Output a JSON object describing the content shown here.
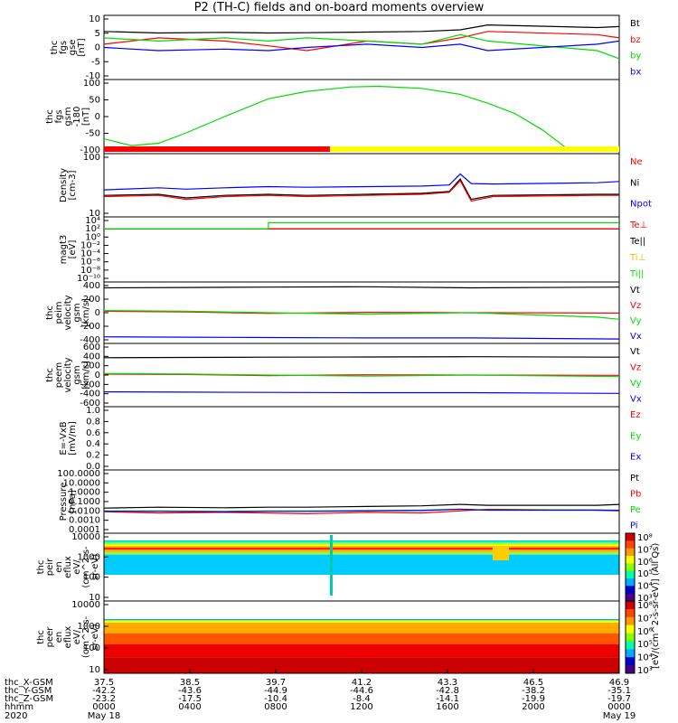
{
  "title": "P2 (TH-C) fields and on-board moments overview",
  "colors": {
    "black": "#000000",
    "red": "#ff0000",
    "green": "#00dd00",
    "blue": "#0000ff",
    "yellow": "#ffff00"
  },
  "chart_data": [
    {
      "type": "line",
      "ylabel": [
        "thc",
        "fgs",
        "gse",
        "[nT]"
      ],
      "yticks": [
        10,
        5,
        0,
        -5,
        -10
      ],
      "ylim": [
        -10,
        10
      ],
      "legend": [
        {
          "label": "Bt",
          "color": "black"
        },
        {
          "label": "bz",
          "color": "red"
        },
        {
          "label": "by",
          "color": "green"
        },
        {
          "label": "bx",
          "color": "blue"
        }
      ],
      "series": [
        {
          "name": "Bt",
          "color": "black",
          "x": [
            37.5,
            38.5,
            39.7,
            40.5,
            41.2,
            42.3,
            43.3,
            44.0,
            44.5,
            46.5,
            46.9
          ],
          "y": [
            5,
            4.5,
            4.7,
            4.5,
            4.6,
            4.8,
            5,
            5.5,
            7,
            6.2,
            6.5
          ]
        },
        {
          "name": "bz",
          "color": "red",
          "x": [
            37.5,
            38.5,
            39.7,
            40.5,
            41.2,
            42.3,
            43.3,
            44.0,
            44.5,
            46.5,
            46.9
          ],
          "y": [
            1,
            3,
            2,
            0.5,
            -1,
            2,
            1,
            3,
            5,
            4,
            3
          ]
        },
        {
          "name": "by",
          "color": "green",
          "x": [
            37.5,
            38.5,
            39.7,
            40.5,
            41.2,
            42.3,
            43.3,
            44.0,
            44.5,
            46.5,
            46.9
          ],
          "y": [
            3,
            2,
            3,
            2,
            3,
            2,
            1,
            4,
            2,
            -1,
            -3.5
          ]
        },
        {
          "name": "bx",
          "color": "blue",
          "x": [
            37.5,
            38.5,
            39.7,
            40.5,
            41.2,
            42.3,
            43.3,
            44.0,
            44.5,
            46.5,
            46.9
          ],
          "y": [
            0,
            -1,
            -0.5,
            -1,
            0,
            1,
            0,
            1,
            -1,
            1,
            2
          ]
        }
      ]
    },
    {
      "type": "line",
      "ylabel": [
        "thc",
        "fgs",
        "gsm",
        "-180",
        "[nT]"
      ],
      "yticks": [
        100,
        50,
        0,
        -50,
        -100
      ],
      "ylim": [
        -130,
        120
      ],
      "legend": [],
      "series": [
        {
          "name": "",
          "color": "green",
          "x": [
            37.5,
            38.0,
            38.5,
            39.0,
            39.7,
            40.5,
            41.2,
            42.0,
            42.5,
            43.3,
            44.0,
            44.5,
            45.0,
            45.5,
            46.0
          ],
          "y": [
            -80,
            -103,
            -95,
            -60,
            -5,
            55,
            80,
            95,
            97,
            90,
            70,
            40,
            5,
            -50,
            -120
          ]
        }
      ]
    },
    {
      "type": "line",
      "ylabel": [
        "Density",
        "[cm-3]"
      ],
      "yticks_log": [
        100,
        10
      ],
      "ylim": [
        2,
        300
      ],
      "log": true,
      "legend": [
        {
          "label": "Ne",
          "color": "red"
        },
        {
          "label": "Ni",
          "color": "black"
        },
        {
          "label": "Npot",
          "color": "blue"
        }
      ],
      "series": [
        {
          "name": "Ni",
          "color": "black",
          "x": [
            37.5,
            38.5,
            39.0,
            39.7,
            40.5,
            41.2,
            42.3,
            43.3,
            43.8,
            44.0,
            44.2,
            44.6,
            46.5,
            46.9
          ],
          "y": [
            11,
            12,
            9,
            11,
            12,
            11,
            12,
            13,
            15,
            40,
            8,
            11,
            12,
            12
          ]
        },
        {
          "name": "Ne",
          "color": "red",
          "x": [
            37.5,
            38.5,
            39.0,
            39.7,
            40.5,
            41.2,
            42.3,
            43.3,
            43.8,
            44.0,
            44.2,
            44.6,
            46.5,
            46.9
          ],
          "y": [
            10,
            11,
            8,
            10,
            11,
            10,
            11,
            12,
            14,
            35,
            7,
            10,
            11,
            11
          ]
        },
        {
          "name": "Npot",
          "color": "blue",
          "x": [
            37.5,
            38.5,
            39.0,
            39.7,
            40.5,
            41.2,
            42.3,
            43.3,
            43.8,
            44.0,
            44.2,
            44.6,
            46.5,
            46.9
          ],
          "y": [
            17,
            20,
            18,
            20,
            22,
            21,
            22,
            23,
            25,
            60,
            28,
            27,
            30,
            33
          ]
        }
      ]
    },
    {
      "type": "line",
      "ylabel": [
        "magt3",
        "[eV]"
      ],
      "yticks_log": [
        "10⁴",
        "10²",
        "10⁰",
        "10⁻²",
        "10⁻⁴",
        "10⁻⁶",
        "10⁻⁸",
        "10⁻¹⁰"
      ],
      "legend": [
        {
          "label": "Te⊥",
          "color": "red"
        },
        {
          "label": "Te||",
          "color": "black"
        },
        {
          "label": "Ti⊥",
          "color": "yellow"
        },
        {
          "label": "Ti||",
          "color": "green"
        }
      ],
      "series": [
        {
          "name": "Te||",
          "color": "black",
          "x": [
            37.5,
            40.5,
            46.9
          ],
          "y": [
            100,
            100,
            100
          ]
        },
        {
          "name": "Te⊥",
          "color": "red",
          "x": [
            37.5,
            40.5,
            46.9
          ],
          "y": [
            100,
            100,
            100
          ]
        },
        {
          "name": "Ti||",
          "color": "green",
          "x": [
            37.5,
            40.5,
            40.5,
            46.9
          ],
          "y": [
            100,
            100,
            3000,
            3000
          ]
        }
      ]
    },
    {
      "type": "line",
      "ylabel": [
        "thc",
        "peim",
        "velocity",
        "gsm",
        "[km/s]"
      ],
      "yticks": [
        400,
        200,
        0,
        -200,
        -400
      ],
      "ylim": [
        -420,
        420
      ],
      "legend": [
        {
          "label": "Vt",
          "color": "black"
        },
        {
          "label": "Vz",
          "color": "red"
        },
        {
          "label": "Vy",
          "color": "green"
        },
        {
          "label": "Vx",
          "color": "blue"
        }
      ],
      "series": [
        {
          "name": "Vt",
          "color": "black",
          "x": [
            37.5,
            39.0,
            40.5,
            42.3,
            44.2,
            46.9
          ],
          "y": [
            340,
            345,
            350,
            355,
            340,
            350
          ]
        },
        {
          "name": "Vz",
          "color": "red",
          "x": [
            37.5,
            39.0,
            40.5,
            42.3,
            44.2,
            46.9
          ],
          "y": [
            20,
            10,
            -10,
            5,
            0,
            -5
          ]
        },
        {
          "name": "Vy",
          "color": "green",
          "x": [
            37.5,
            39.0,
            40.5,
            42.3,
            44.2,
            46.5,
            46.9
          ],
          "y": [
            30,
            20,
            0,
            -20,
            0,
            -60,
            -90
          ]
        },
        {
          "name": "Vx",
          "color": "blue",
          "x": [
            37.5,
            39.0,
            40.5,
            42.3,
            44.2,
            46.9
          ],
          "y": [
            -330,
            -335,
            -340,
            -345,
            -345,
            -360
          ]
        }
      ]
    },
    {
      "type": "line",
      "ylabel": [
        "thc",
        "peem",
        "velocity",
        "gsm",
        "[km/s]"
      ],
      "yticks": [
        600,
        400,
        200,
        0,
        -200,
        -400,
        -600
      ],
      "ylim": [
        -620,
        620
      ],
      "legend": [
        {
          "label": "Vt",
          "color": "black"
        },
        {
          "label": "Vz",
          "color": "red"
        },
        {
          "label": "Vy",
          "color": "green"
        },
        {
          "label": "Vx",
          "color": "blue"
        }
      ],
      "series": [
        {
          "name": "Vt",
          "color": "black",
          "x": [
            37.5,
            39.0,
            40.5,
            42.3,
            44.2,
            46.9
          ],
          "y": [
            340,
            345,
            350,
            355,
            360,
            350
          ]
        },
        {
          "name": "Vz",
          "color": "red",
          "x": [
            37.5,
            39.0,
            40.5,
            42.3,
            44.2,
            46.9
          ],
          "y": [
            20,
            10,
            -10,
            5,
            0,
            -5
          ]
        },
        {
          "name": "Vy",
          "color": "green",
          "x": [
            37.5,
            39.0,
            40.5,
            42.3,
            44.2,
            46.9
          ],
          "y": [
            30,
            20,
            0,
            -20,
            0,
            -30
          ]
        },
        {
          "name": "Vx",
          "color": "blue",
          "x": [
            37.5,
            39.0,
            40.5,
            42.3,
            44.2,
            46.9
          ],
          "y": [
            -330,
            -335,
            -340,
            -345,
            -345,
            -360
          ]
        }
      ]
    },
    {
      "type": "line",
      "ylabel": [
        "E=-VxB",
        "[mV/m]"
      ],
      "yticks": [
        "1.0",
        "0.8",
        "0.6",
        "0.4",
        "0.2",
        "0.0"
      ],
      "legend": [
        {
          "label": "Ez",
          "color": "red"
        },
        {
          "label": "Ey",
          "color": "green"
        },
        {
          "label": "Ex",
          "color": "blue"
        }
      ],
      "series": []
    },
    {
      "type": "line",
      "ylabel": [
        "Pressure",
        "[nPa]"
      ],
      "yticks": [
        "100.0000",
        "10.0000",
        "1.0000",
        "0.1000",
        "0.0100",
        "0.0010",
        "0.0001"
      ],
      "log": true,
      "legend": [
        {
          "label": "Pt",
          "color": "black"
        },
        {
          "label": "Pb",
          "color": "red"
        },
        {
          "label": "Pe",
          "color": "green"
        },
        {
          "label": "Pi",
          "color": "blue"
        }
      ],
      "series": [
        {
          "name": "Pt",
          "color": "black",
          "x": [
            37.5,
            38.5,
            39.7,
            40.5,
            41.2,
            42.3,
            43.3,
            44.0,
            44.5,
            46.5,
            46.9
          ],
          "y": [
            0.02,
            0.025,
            0.022,
            0.025,
            0.025,
            0.03,
            0.035,
            0.05,
            0.04,
            0.04,
            0.05
          ]
        },
        {
          "name": "Pb",
          "color": "red",
          "x": [
            37.5,
            38.5,
            39.7,
            40.5,
            41.2,
            42.3,
            43.3,
            44.0,
            44.5,
            46.5,
            46.9
          ],
          "y": [
            0.008,
            0.006,
            0.007,
            0.006,
            0.005,
            0.007,
            0.006,
            0.01,
            0.015,
            0.012,
            0.01
          ]
        },
        {
          "name": "Pe",
          "color": "green",
          "x": [
            37.5,
            38.5,
            39.7,
            40.5,
            41.2,
            42.3,
            43.3,
            44.0,
            44.5,
            46.5,
            46.9
          ],
          "y": [
            0.01,
            0.01,
            0.009,
            0.01,
            0.01,
            0.011,
            0.012,
            0.015,
            0.013,
            0.013,
            0.012
          ]
        },
        {
          "name": "Pi",
          "color": "blue",
          "x": [
            37.5,
            38.5,
            39.7,
            40.5,
            41.2,
            42.3,
            43.3,
            44.0,
            44.5,
            46.5,
            46.9
          ],
          "y": [
            0.009,
            0.009,
            0.008,
            0.009,
            0.009,
            0.01,
            0.011,
            0.015,
            0.012,
            0.012,
            0.011
          ]
        }
      ]
    },
    {
      "type": "heatmap",
      "ylabel": [
        "thc",
        "peir",
        "en",
        "eflux",
        "eV/",
        "(cm^2-s-",
        "sr-eV)"
      ],
      "yticks": [
        "10000",
        "1000",
        "100",
        "10"
      ],
      "colorbar": {
        "ticks": [
          "10⁸",
          "10⁷",
          "10⁶",
          "10⁵",
          "10⁴",
          "10³"
        ],
        "label": "[eV/(cm^2-s-sr-eV)] (All Qs)"
      }
    },
    {
      "type": "heatmap",
      "ylabel": [
        "thc",
        "peer",
        "en",
        "eflux",
        "eV/",
        "(cm^2-s-",
        "sr-eV)"
      ],
      "yticks": [
        "10000",
        "1000",
        "100",
        "10"
      ],
      "colorbar": {
        "ticks": [
          "10⁸",
          "10⁷",
          "10⁶",
          "10⁵",
          "10⁴",
          "10³"
        ],
        "label": "[eV/(cm^2-s-sr-eV)] (All Qs)"
      }
    }
  ],
  "footer": {
    "rows": [
      {
        "label": "thc_X-GSM",
        "values": [
          "37.5",
          "38.5",
          "39.7",
          "41.2",
          "43.3",
          "46.5",
          "46.9"
        ]
      },
      {
        "label": "thc_Y-GSM",
        "values": [
          "-42.2",
          "-43.6",
          "-44.9",
          "-44.6",
          "-42.8",
          "-38.2",
          "-35.1"
        ]
      },
      {
        "label": "thc_Z-GSM",
        "values": [
          "-23.2",
          "-17.5",
          "-10.4",
          "-8.4",
          "-14.1",
          "-19.9",
          "-19.7"
        ]
      },
      {
        "label": "hhmm",
        "values": [
          "0000",
          "0400",
          "0800",
          "1200",
          "1600",
          "2000",
          "0000"
        ]
      }
    ],
    "year": "2020",
    "date_left": "May 18",
    "date_right": "May 19"
  }
}
